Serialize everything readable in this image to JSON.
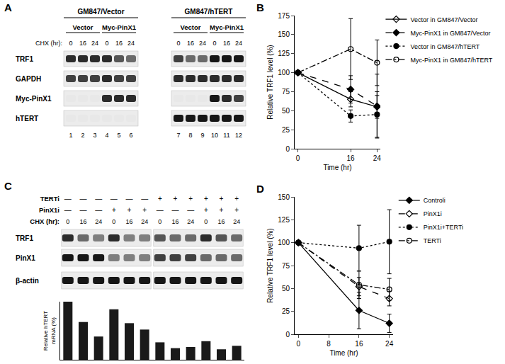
{
  "panel_labels": [
    "A",
    "B",
    "C",
    "D"
  ],
  "blot_A": {
    "chx_label": "CHX (hr):",
    "groups": [
      {
        "title": "GM847/Vector",
        "subgroups": [
          {
            "title": "Vector",
            "chx": [
              0,
              16,
              24
            ]
          },
          {
            "title": "Myc-PinX1",
            "chx": [
              0,
              16,
              24
            ]
          }
        ]
      },
      {
        "title": "GM847/hTERT",
        "subgroups": [
          {
            "title": "Vector",
            "chx": [
              0,
              16,
              24
            ]
          },
          {
            "title": "Myc-PinX1",
            "chx": [
              0,
              16,
              24
            ]
          }
        ]
      }
    ],
    "rows": [
      {
        "label": "TRF1",
        "signal": [
          0.9,
          0.9,
          0.9,
          0.9,
          0.7,
          0.6,
          0.8,
          0.6,
          0.6,
          1,
          1,
          1
        ]
      },
      {
        "label": "GAPDH",
        "signal": [
          0.8,
          0.8,
          0.8,
          0.9,
          0.8,
          0.8,
          0.9,
          0.9,
          0.9,
          0.9,
          0.9,
          0.9
        ]
      },
      {
        "label": "Myc-PinX1",
        "signal": [
          0,
          0,
          0,
          0.9,
          0.9,
          0.9,
          0,
          0,
          0,
          1,
          0.9,
          0.8
        ]
      },
      {
        "label": "hTERT",
        "signal": [
          0,
          0,
          0,
          0,
          0,
          0,
          1,
          1,
          1,
          1,
          1,
          1
        ]
      }
    ],
    "lane_numbers": [
      1,
      2,
      3,
      4,
      5,
      6,
      7,
      8,
      9,
      10,
      11,
      12
    ]
  },
  "blot_C": {
    "treatments": [
      {
        "label": "TERTi",
        "marks": [
          "—",
          "—",
          "—",
          "—",
          "—",
          "—",
          "+",
          "+",
          "+",
          "+",
          "+",
          "+"
        ]
      },
      {
        "label": "PinX1i",
        "marks": [
          "—",
          "—",
          "—",
          "+",
          "+",
          "+",
          "—",
          "—",
          "—",
          "+",
          "+",
          "+"
        ]
      }
    ],
    "chx_label": "CHX (hr):",
    "chx": [
      0,
      16,
      24,
      0,
      16,
      24,
      0,
      16,
      24,
      0,
      16,
      24
    ],
    "rows": [
      {
        "label": "TRF1",
        "signal": [
          0.9,
          0.6,
          0.5,
          0.9,
          0.5,
          0.5,
          0.7,
          0.6,
          0.6,
          0.9,
          0.7,
          0.6
        ]
      },
      {
        "label": "PinX1",
        "signal": [
          1,
          1,
          1,
          0.5,
          0.5,
          0.5,
          0.8,
          0.8,
          0.8,
          0.6,
          0.6,
          0.6
        ]
      },
      {
        "label": "β-actin",
        "signal": [
          1,
          1,
          1,
          1,
          1,
          1,
          1,
          1,
          1,
          1,
          1,
          1
        ]
      }
    ]
  },
  "chart_data": [
    {
      "type": "line",
      "xlabel": "Time (hr)",
      "ylabel": "Relative TRF1 level (%)",
      "x": [
        0,
        16,
        24
      ],
      "xlim": [
        -1,
        25
      ],
      "xticks": [
        0,
        16,
        24
      ],
      "ylim": [
        0,
        175
      ],
      "yticks": [
        0,
        25,
        50,
        75,
        100,
        125,
        150,
        175
      ],
      "grid": false,
      "legend": "top right",
      "series": [
        {
          "name": "Vector in GM847/Vector",
          "color": "#000000",
          "marker": "diamond-open",
          "line_style": "solid",
          "values": [
            100,
            65,
            55
          ],
          "errors": [
            0,
            10,
            15
          ]
        },
        {
          "name": "Myc-PinX1 in GM847/Vector",
          "color": "#000000",
          "marker": "diamond",
          "line_style": "dash",
          "values": [
            100,
            78,
            56
          ],
          "errors": [
            0,
            18,
            42
          ]
        },
        {
          "name": "Vector in GM847/hTERT",
          "color": "#000000",
          "marker": "circle",
          "line_style": "dot",
          "values": [
            100,
            43,
            45
          ],
          "errors": [
            0,
            8,
            30
          ]
        },
        {
          "name": "Myc-PinX1 in GM847/hTERT",
          "color": "#000000",
          "marker": "circle-open",
          "line_style": "dashdot",
          "values": [
            100,
            131,
            113
          ],
          "errors": [
            0,
            40,
            30
          ]
        }
      ]
    },
    {
      "type": "line",
      "xlabel": "Time (hr)",
      "ylabel": "Relative TRF1 level (%)",
      "x": [
        0,
        16,
        24
      ],
      "xlim": [
        -1,
        25
      ],
      "xticks": [
        0,
        8,
        16,
        24
      ],
      "ylim": [
        0,
        150
      ],
      "yticks": [
        0,
        25,
        50,
        75,
        100,
        125,
        150
      ],
      "grid": false,
      "legend": "top right",
      "series": [
        {
          "name": "Controli",
          "color": "#000000",
          "marker": "diamond",
          "line_style": "solid",
          "values": [
            100,
            26,
            12
          ],
          "errors": [
            0,
            20,
            10
          ]
        },
        {
          "name": "PinX1i",
          "color": "#000000",
          "marker": "diamond-open",
          "line_style": "dash",
          "values": [
            100,
            52,
            39
          ],
          "errors": [
            0,
            10,
            8
          ]
        },
        {
          "name": "PinX1i+TERTi",
          "color": "#000000",
          "marker": "circle",
          "line_style": "dot",
          "values": [
            100,
            94,
            101
          ],
          "errors": [
            0,
            25,
            35
          ]
        },
        {
          "name": "TERTi",
          "color": "#000000",
          "marker": "circle-open",
          "line_style": "dashdot",
          "values": [
            100,
            54,
            49
          ],
          "errors": [
            0,
            15,
            12
          ]
        }
      ]
    },
    {
      "type": "bar",
      "ylabel": "Relative hTERT mRNA (%)",
      "categories": [
        null,
        null,
        null,
        null,
        null,
        null,
        null,
        null,
        null,
        null,
        null,
        null
      ],
      "values": [
        100,
        65,
        40,
        87,
        63,
        52,
        30,
        20,
        22,
        32,
        18,
        24
      ],
      "color": "#1a1a1a",
      "ylim": [
        0,
        100
      ],
      "tick_labels": false,
      "grid": false
    }
  ]
}
